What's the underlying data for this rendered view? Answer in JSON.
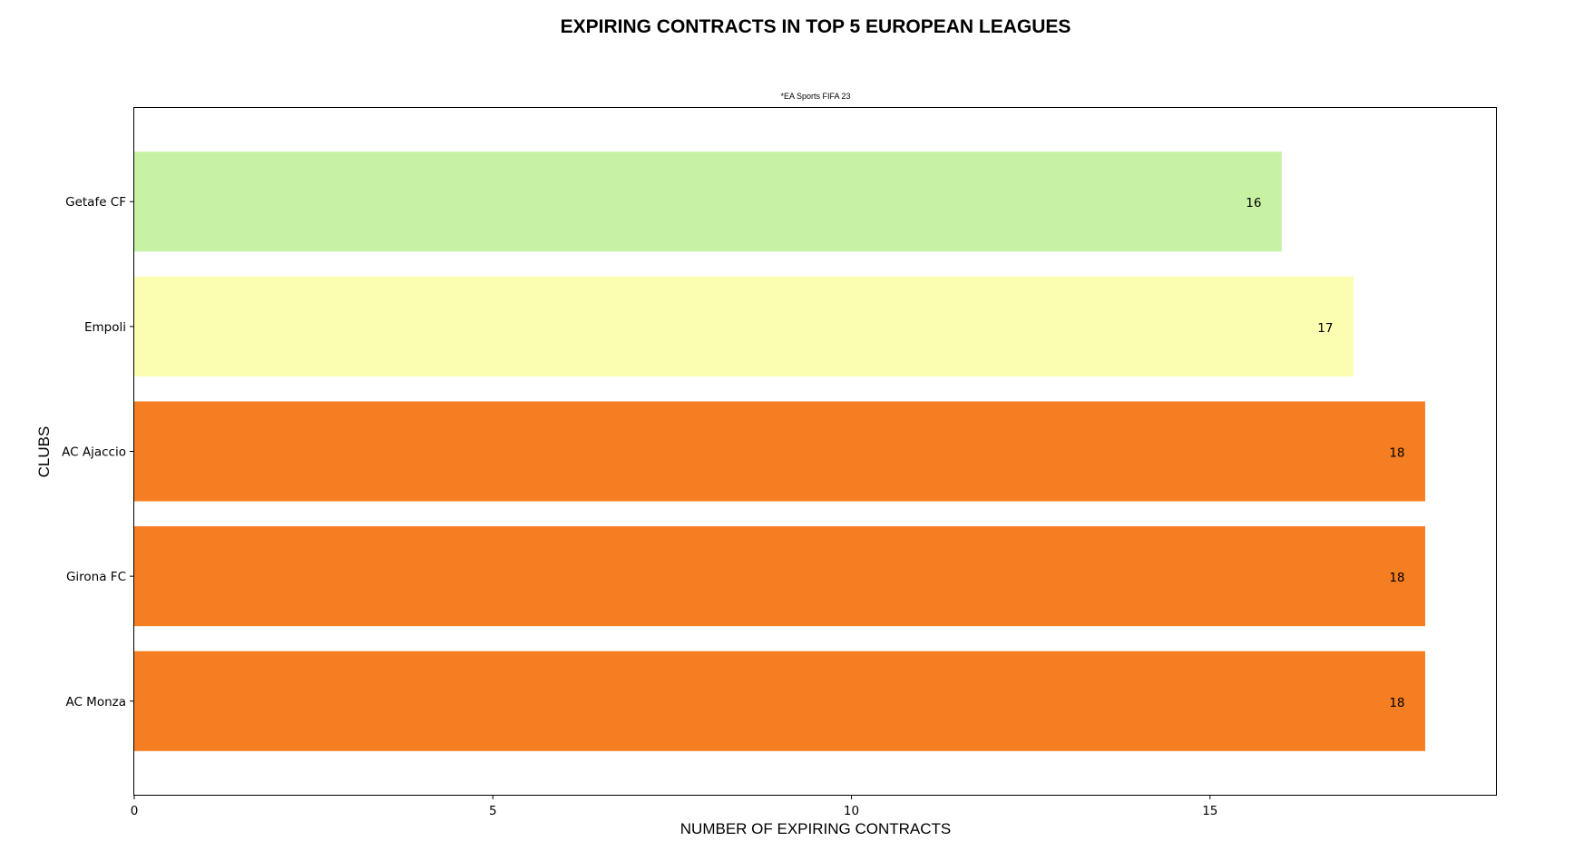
{
  "chart_data": {
    "type": "bar",
    "orientation": "horizontal",
    "title": "EXPIRING CONTRACTS IN TOP 5 EUROPEAN LEAGUES",
    "subtitle": "*EA Sports FIFA 23",
    "xlabel": "NUMBER OF EXPIRING CONTRACTS",
    "ylabel": "CLUBS",
    "categories": [
      "Getafe CF",
      "Empoli",
      "AC Ajaccio",
      "Girona FC",
      "AC Monza"
    ],
    "values": [
      16,
      17,
      18,
      18,
      18
    ],
    "value_labels": [
      "16",
      "17",
      "18",
      "18",
      "18"
    ],
    "colors": [
      "#c7f2a4",
      "#fbfdb1",
      "#f67e22",
      "#f67e22",
      "#f67e22"
    ],
    "xlim": [
      0,
      19
    ],
    "xticks": [
      0,
      5,
      10,
      15
    ],
    "xtick_labels": [
      "0",
      "5",
      "10",
      "15"
    ],
    "grid": false,
    "legend": "none"
  }
}
